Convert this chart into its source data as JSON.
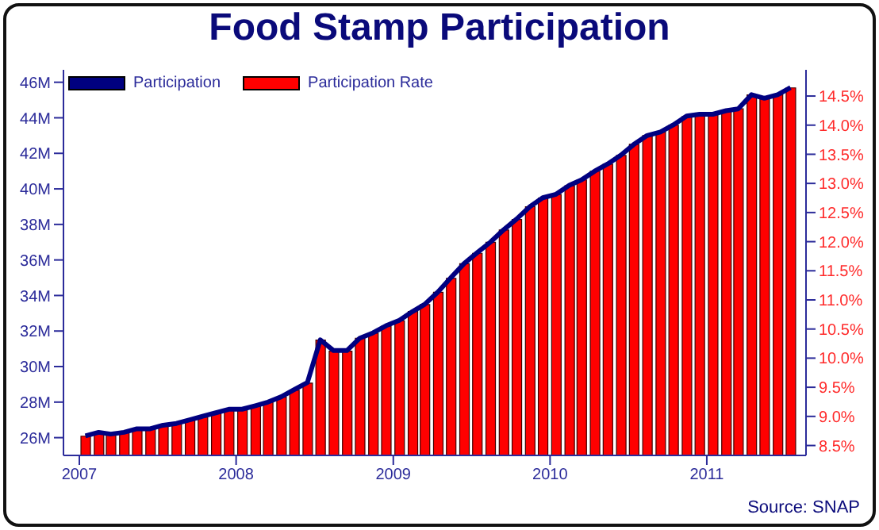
{
  "chart_data": {
    "type": "bar",
    "title": "Food Stamp Participation",
    "annotations": [
      "Source: SNAP"
    ],
    "x": [
      "2007-01-15",
      "2007-02-15",
      "2007-03-15",
      "2007-04-15",
      "2007-05-15",
      "2007-06-15",
      "2007-07-15",
      "2007-08-15",
      "2007-09-15",
      "2007-10-15",
      "2007-11-15",
      "2007-12-15",
      "2008-01-15",
      "2008-02-15",
      "2008-03-15",
      "2008-04-15",
      "2008-05-15",
      "2008-06-15",
      "2008-07-15",
      "2008-08-15",
      "2008-09-15",
      "2008-10-15",
      "2008-11-15",
      "2008-12-15",
      "2009-01-15",
      "2009-02-15",
      "2009-03-15",
      "2009-04-15",
      "2009-05-15",
      "2009-06-15",
      "2009-07-15",
      "2009-08-15",
      "2009-09-15",
      "2009-10-15",
      "2009-11-15",
      "2009-12-15",
      "2010-01-15",
      "2010-02-15",
      "2010-03-15",
      "2010-04-15",
      "2010-05-15",
      "2010-06-15",
      "2010-07-15",
      "2010-08-15",
      "2010-09-15",
      "2010-10-15",
      "2010-11-15",
      "2010-12-15",
      "2011-01-15",
      "2011-02-15",
      "2011-03-15",
      "2011-04-15",
      "2011-05-15",
      "2011-06-15",
      "2011-07-15"
    ],
    "series": [
      {
        "name": "Participation",
        "type": "line",
        "color": "#000080",
        "values": [
          26.1,
          26.3,
          26.2,
          26.3,
          26.5,
          26.5,
          26.7,
          26.8,
          27.0,
          27.2,
          27.4,
          27.6,
          27.6,
          27.8,
          28.0,
          28.3,
          28.7,
          29.1,
          31.5,
          30.9,
          30.9,
          31.6,
          31.9,
          32.3,
          32.6,
          33.1,
          33.5,
          34.2,
          35.0,
          35.8,
          36.4,
          37.0,
          37.7,
          38.3,
          39.0,
          39.5,
          39.7,
          40.2,
          40.5,
          41.0,
          41.4,
          41.9,
          42.5,
          43.0,
          43.2,
          43.6,
          44.1,
          44.2,
          44.2,
          44.4,
          44.5,
          45.3,
          45.1,
          45.3,
          45.7
        ]
      },
      {
        "name": "Participation Rate",
        "color": "#ff0000",
        "axis": "y2",
        "values": [
          8.66,
          8.72,
          8.69,
          8.72,
          8.78,
          8.78,
          8.84,
          8.87,
          8.93,
          8.99,
          9.06,
          9.12,
          9.12,
          9.18,
          9.24,
          9.33,
          9.45,
          9.57,
          10.31,
          10.12,
          10.12,
          10.34,
          10.43,
          10.55,
          10.64,
          10.8,
          10.92,
          11.13,
          11.37,
          11.62,
          11.8,
          11.99,
          12.2,
          12.38,
          12.6,
          12.75,
          12.81,
          12.96,
          13.06,
          13.21,
          13.33,
          13.48,
          13.67,
          13.82,
          13.88,
          14.0,
          14.15,
          14.18,
          14.18,
          14.25,
          14.28,
          14.52,
          14.46,
          14.52,
          14.64
        ]
      }
    ],
    "xlim": [
      "2006-11-25",
      "2011-08-20"
    ],
    "xticks": [
      "2007",
      "2008",
      "2009",
      "2010",
      "2011"
    ],
    "ylim": [
      25,
      46.7
    ],
    "yticks": [
      {
        "value": 26,
        "label": "26M"
      },
      {
        "value": 28,
        "label": "28M"
      },
      {
        "value": 30,
        "label": "30M"
      },
      {
        "value": 32,
        "label": "32M"
      },
      {
        "value": 34,
        "label": "34M"
      },
      {
        "value": 36,
        "label": "36M"
      },
      {
        "value": 38,
        "label": "38M"
      },
      {
        "value": 40,
        "label": "40M"
      },
      {
        "value": 42,
        "label": "42M"
      },
      {
        "value": 44,
        "label": "44M"
      },
      {
        "value": 46,
        "label": "46M"
      }
    ],
    "y2lim": [
      8.33,
      14.95
    ],
    "y2ticks": [
      {
        "value": 8.5,
        "label": "8.5%"
      },
      {
        "value": 9,
        "label": "9.0%"
      },
      {
        "value": 9.5,
        "label": "9.5%"
      },
      {
        "value": 10,
        "label": "10.0%"
      },
      {
        "value": 10.5,
        "label": "10.5%"
      },
      {
        "value": 11,
        "label": "11.0%"
      },
      {
        "value": 11.5,
        "label": "11.5%"
      },
      {
        "value": 12,
        "label": "12.0%"
      },
      {
        "value": 12.5,
        "label": "12.5%"
      },
      {
        "value": 13,
        "label": "13.0%"
      },
      {
        "value": 13.5,
        "label": "13.5%"
      },
      {
        "value": 14,
        "label": "14.0%"
      },
      {
        "value": 14.5,
        "label": "14.5%"
      }
    ],
    "grid": false,
    "legend": "top left"
  }
}
